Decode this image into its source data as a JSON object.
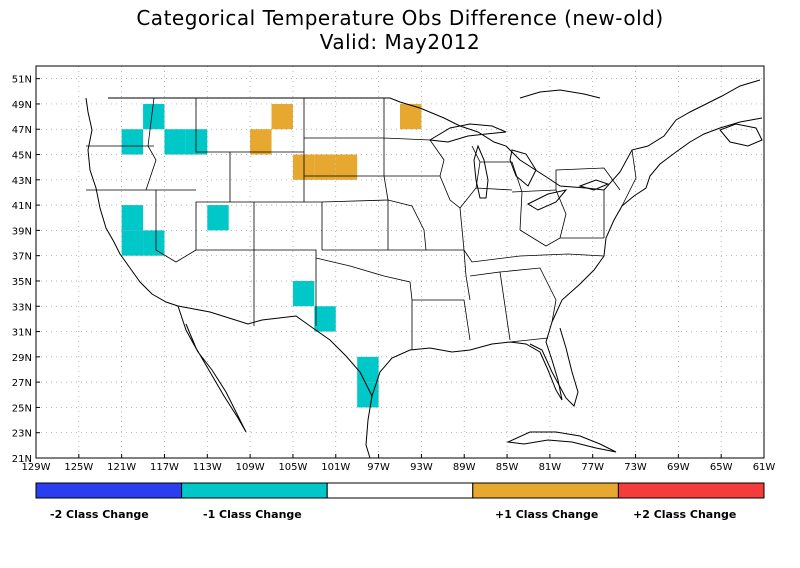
{
  "title": "Categorical Temperature Obs Difference (new-old)",
  "subtitle": "Valid: May2012",
  "map": {
    "lon_labels": [
      "129W",
      "125W",
      "121W",
      "117W",
      "113W",
      "109W",
      "105W",
      "101W",
      "97W",
      "93W",
      "89W",
      "85W",
      "81W",
      "77W",
      "73W",
      "69W",
      "65W",
      "61W"
    ],
    "lat_labels": [
      "51N",
      "49N",
      "47N",
      "45N",
      "43N",
      "41N",
      "39N",
      "37N",
      "35N",
      "33N",
      "31N",
      "29N",
      "27N",
      "25N",
      "23N",
      "21N"
    ],
    "lon_range": [
      -129,
      -61
    ],
    "lat_range": [
      21,
      52
    ],
    "cell_size_deg": 2,
    "cells_minus1": [
      [
        -118,
        48
      ],
      [
        -120,
        46
      ],
      [
        -116,
        46
      ],
      [
        -114,
        46
      ],
      [
        -120,
        40
      ],
      [
        -120,
        38
      ],
      [
        -118,
        38
      ],
      [
        -112,
        40
      ],
      [
        -104,
        34
      ],
      [
        -102,
        32
      ],
      [
        -98,
        28
      ],
      [
        -98,
        26
      ]
    ],
    "cells_plus1": [
      [
        -106,
        48
      ],
      [
        -108,
        46
      ],
      [
        -94,
        48
      ],
      [
        -104,
        44
      ],
      [
        -102,
        44
      ],
      [
        -100,
        44
      ]
    ]
  },
  "legend": {
    "colors": [
      "#2a3ef0",
      "#00c8c8",
      "#ffffff",
      "#e6a82e",
      "#f53c3c"
    ],
    "labels": [
      "-2 Class Change",
      "-1 Class Change",
      "",
      "+1 Class Change",
      "+2 Class Change"
    ]
  }
}
